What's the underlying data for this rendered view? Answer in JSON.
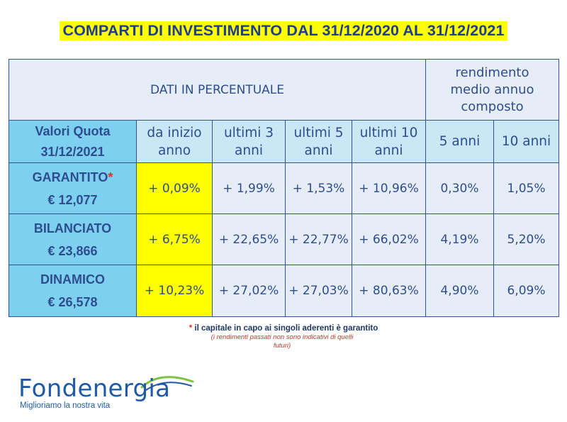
{
  "title": "COMPARTI DI INVESTIMENTO DAL 31/12/2020 AL 31/12/2021",
  "table": {
    "header_main": "DATI IN PERCENTUALE",
    "header_rend": [
      "rendimento",
      "medio annuo",
      "composto"
    ],
    "quota_label": [
      "Valori Quota",
      "31/12/2021"
    ],
    "columns": [
      [
        "da inizio",
        "anno"
      ],
      [
        "ultimi 3",
        "anni"
      ],
      [
        "ultimi 5",
        "anni"
      ],
      [
        "ultimi 10",
        "anni"
      ],
      [
        "5 anni"
      ],
      [
        "10 anni"
      ]
    ],
    "rows": [
      {
        "name": "GARANTITO",
        "star": "*",
        "quota": "€ 12,077",
        "values": [
          "+ 0,09%",
          "+ 1,99%",
          "+ 1,53%",
          "+ 10,96%",
          "0,30%",
          "1,05%"
        ]
      },
      {
        "name": "BILANCIATO",
        "quota": "€ 23,866",
        "values": [
          "+ 6,75%",
          "+ 22,65%",
          "+ 22,77%",
          "+ 66,02%",
          "4,19%",
          "5,20%"
        ]
      },
      {
        "name": "DINAMICO",
        "quota": "€ 26,578",
        "values": [
          "+ 10,23%",
          "+ 27,02%",
          "+ 27,03%",
          "+ 80,63%",
          "4,90%",
          "6,09%"
        ]
      }
    ]
  },
  "notes": {
    "star": "*",
    "guarantee": " il capitale in capo ai singoli aderenti è garantito",
    "disclaimer": "(i rendimenti passati non sono indicativi di quelli futuri)"
  },
  "logo": {
    "name": "Fondenergia",
    "tagline": "Miglioriamo la nostra vita"
  },
  "colors": {
    "highlight": "#ffff00",
    "row_label": "#7dd0f0",
    "subheader": "#c9e7f5",
    "cell": "#e7edf6",
    "text": "#1f3c93"
  }
}
